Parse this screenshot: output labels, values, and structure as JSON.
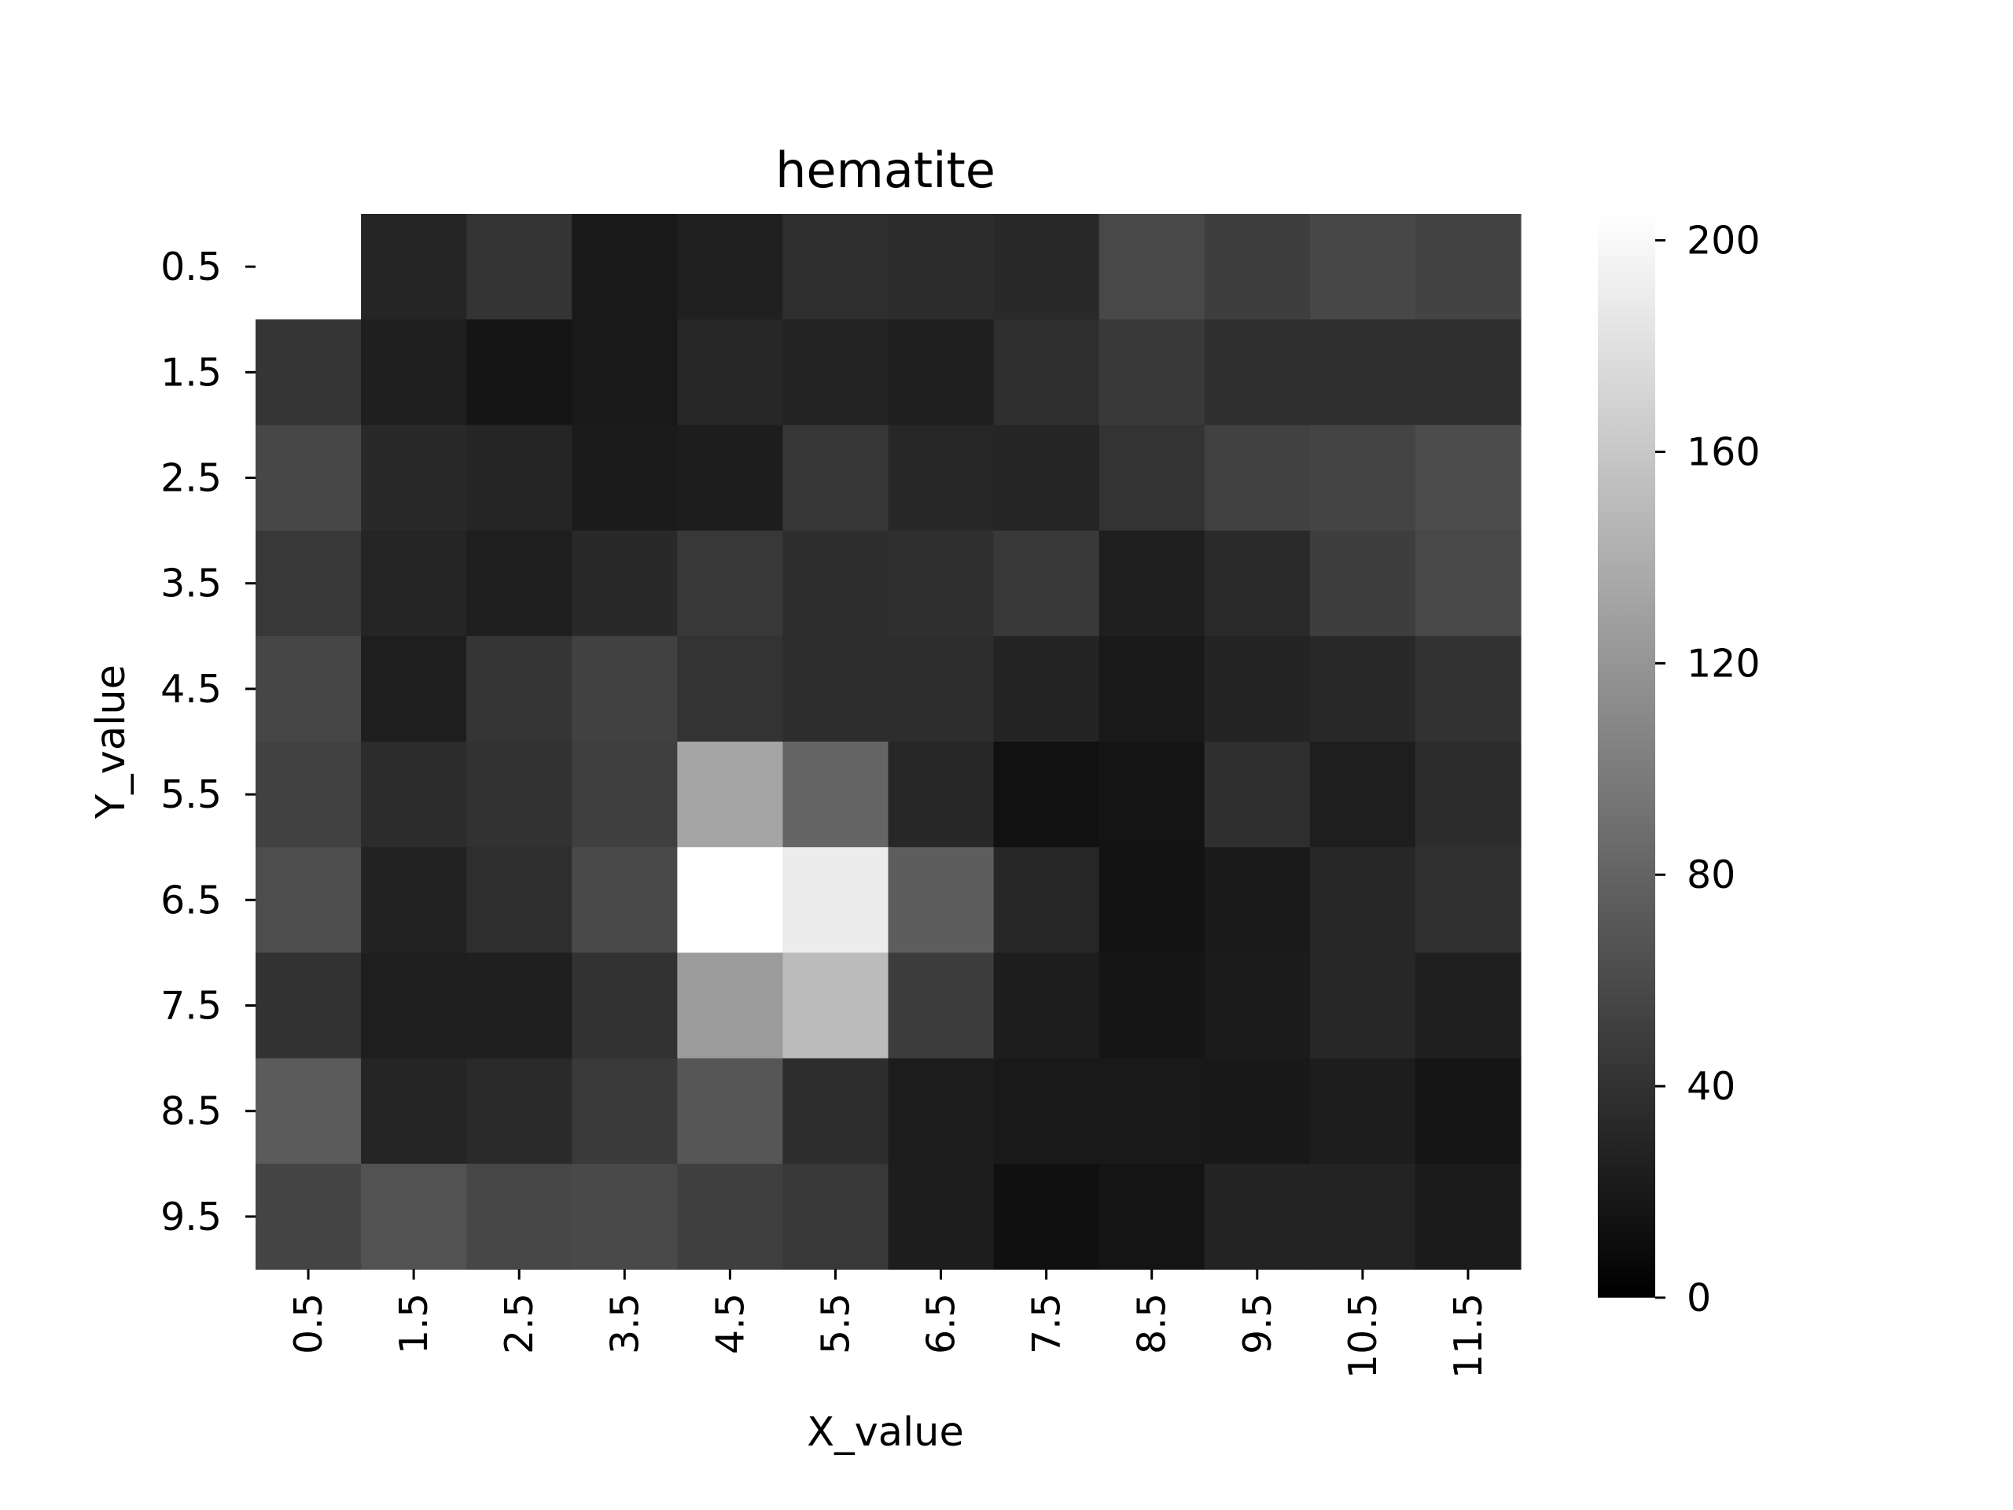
{
  "chart_data": {
    "type": "heatmap",
    "title": "hematite",
    "xlabel": "X_value",
    "ylabel": "Y_value",
    "x_categories": [
      "0.5",
      "1.5",
      "2.5",
      "3.5",
      "4.5",
      "5.5",
      "6.5",
      "7.5",
      "8.5",
      "9.5",
      "10.5",
      "11.5"
    ],
    "y_categories": [
      "0.5",
      "1.5",
      "2.5",
      "3.5",
      "4.5",
      "5.5",
      "6.5",
      "7.5",
      "8.5",
      "9.5"
    ],
    "values": [
      [
        null,
        30,
        42,
        20,
        26,
        37,
        35,
        33,
        58,
        50,
        57,
        54
      ],
      [
        43,
        25,
        17,
        20,
        31,
        28,
        24,
        37,
        46,
        38,
        38,
        38
      ],
      [
        57,
        33,
        30,
        22,
        23,
        44,
        31,
        30,
        41,
        52,
        55,
        61
      ],
      [
        45,
        30,
        24,
        33,
        45,
        36,
        38,
        46,
        25,
        34,
        50,
        58
      ],
      [
        56,
        24,
        43,
        52,
        41,
        36,
        36,
        29,
        20,
        29,
        33,
        40
      ],
      [
        52,
        35,
        40,
        51,
        133,
        81,
        31,
        14,
        16,
        38,
        24,
        35
      ],
      [
        62,
        27,
        37,
        59,
        205,
        190,
        75,
        31,
        15,
        21,
        31,
        39
      ],
      [
        40,
        24,
        25,
        40,
        125,
        150,
        48,
        23,
        17,
        22,
        31,
        25
      ],
      [
        73,
        30,
        34,
        47,
        69,
        36,
        23,
        20,
        20,
        19,
        23,
        17
      ],
      [
        55,
        66,
        57,
        59,
        51,
        45,
        23,
        13,
        16,
        28,
        28,
        22
      ]
    ],
    "colorscale": {
      "min": 0,
      "max": 205,
      "min_color": "#000000",
      "max_color": "#ffffff"
    },
    "colorbar_ticks": [
      0,
      40,
      80,
      120,
      160,
      200
    ],
    "grid": false
  }
}
